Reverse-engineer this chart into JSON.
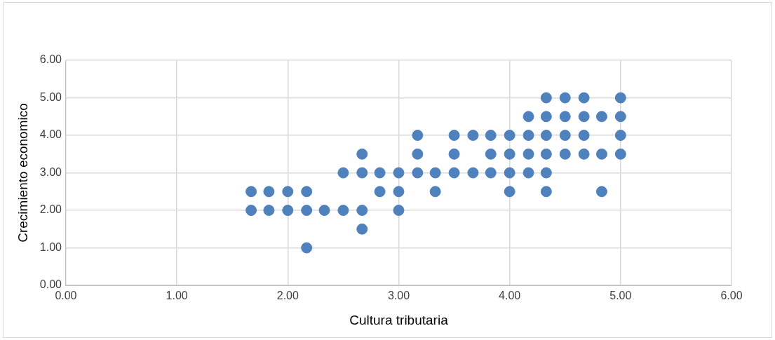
{
  "chart_data": {
    "type": "scatter",
    "xlabel": "Cultura tributaria",
    "ylabel": "Crecimiento economico",
    "x": [
      1.67,
      1.67,
      1.83,
      1.83,
      2.0,
      2.0,
      2.17,
      2.17,
      2.17,
      2.33,
      2.5,
      2.5,
      2.67,
      2.67,
      2.67,
      2.67,
      2.83,
      2.83,
      3.0,
      3.0,
      3.0,
      3.17,
      3.17,
      3.17,
      3.33,
      3.33,
      3.5,
      3.5,
      3.5,
      3.67,
      3.67,
      3.83,
      3.83,
      3.83,
      4.0,
      4.0,
      4.0,
      4.0,
      4.17,
      4.17,
      4.17,
      4.17,
      4.33,
      4.33,
      4.33,
      4.33,
      4.33,
      4.33,
      4.5,
      4.5,
      4.5,
      4.5,
      4.67,
      4.67,
      4.67,
      4.67,
      4.83,
      4.83,
      4.83,
      5.0,
      5.0,
      5.0,
      5.0
    ],
    "values": [
      2.5,
      2.0,
      2.5,
      2.0,
      2.5,
      2.0,
      2.5,
      2.0,
      1.0,
      2.0,
      3.0,
      2.0,
      3.5,
      3.0,
      2.0,
      1.5,
      3.0,
      2.5,
      3.0,
      2.5,
      2.0,
      4.0,
      3.5,
      3.0,
      3.0,
      2.5,
      4.0,
      3.5,
      3.0,
      4.0,
      3.0,
      4.0,
      3.5,
      3.0,
      4.0,
      3.5,
      3.0,
      2.5,
      4.5,
      4.0,
      3.5,
      3.0,
      5.0,
      4.5,
      4.0,
      3.5,
      3.0,
      2.5,
      5.0,
      4.5,
      4.0,
      3.5,
      5.0,
      4.5,
      4.0,
      3.5,
      4.5,
      3.5,
      2.5,
      5.0,
      4.5,
      4.0,
      3.5
    ],
    "color": "#4f81bd",
    "marker": "circle",
    "grid": true,
    "xlim": [
      0,
      6
    ],
    "ylim": [
      0,
      6
    ],
    "xticks": [
      {
        "value": 0,
        "label": "0.00"
      },
      {
        "value": 1,
        "label": "1.00"
      },
      {
        "value": 2,
        "label": "2.00"
      },
      {
        "value": 3,
        "label": "3.00"
      },
      {
        "value": 4,
        "label": "4.00"
      },
      {
        "value": 5,
        "label": "5.00"
      },
      {
        "value": 6,
        "label": "6.00"
      }
    ],
    "yticks": [
      {
        "value": 0,
        "label": "0.00"
      },
      {
        "value": 1,
        "label": "1.00"
      },
      {
        "value": 2,
        "label": "2.00"
      },
      {
        "value": 3,
        "label": "3.00"
      },
      {
        "value": 4,
        "label": "4.00"
      },
      {
        "value": 5,
        "label": "5.00"
      },
      {
        "value": 6,
        "label": "6.00"
      }
    ]
  }
}
